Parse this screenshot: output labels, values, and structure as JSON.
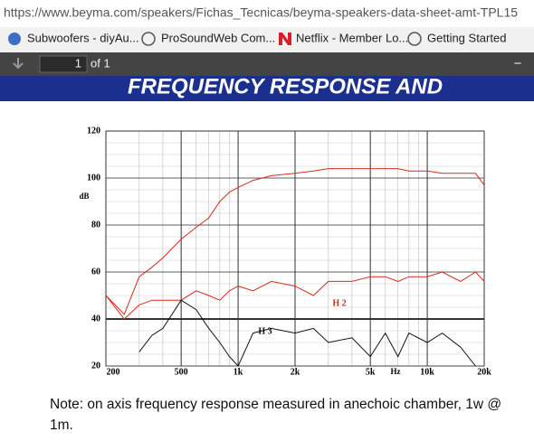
{
  "browser": {
    "url": "https://www.beyma.com/speakers/Fichas_Tecnicas/beyma-speakers-data-sheet-amt-TPL15",
    "bookmarks": [
      "Subwoofers - diyAu...",
      "ProSoundWeb Com...",
      "Netflix - Member Lo...",
      "Getting Started"
    ]
  },
  "pdf_toolbar": {
    "page": "1",
    "of": "of 1",
    "zoom_out": "−"
  },
  "document": {
    "banner": "FREQUENCY RESPONSE AND",
    "note": "Note: on axis frequency response measured  in anechoic chamber,  1w @ 1m."
  },
  "chart_data": {
    "type": "line",
    "x_label": "Hz",
    "y_label": "dB",
    "log_x": true,
    "grid": true,
    "x": [
      200,
      250,
      300,
      350,
      400,
      500,
      600,
      700,
      800,
      900,
      1000,
      1200,
      1500,
      2000,
      2500,
      3000,
      4000,
      5000,
      6000,
      7000,
      8000,
      10000,
      12000,
      15000,
      18000,
      20000
    ],
    "xlim": [
      200,
      20000
    ],
    "xticks": [
      200,
      500,
      {
        "value": 1000,
        "label": "1k"
      },
      {
        "value": 2000,
        "label": "2k"
      },
      {
        "value": 5000,
        "label": "5k"
      },
      {
        "value": 10000,
        "label": "10k"
      },
      {
        "value": 20000,
        "label": "20k"
      }
    ],
    "ylim": [
      20,
      120
    ],
    "yticks": [
      20,
      40,
      60,
      80,
      100,
      120
    ],
    "series": [
      {
        "color": "#d42a20",
        "values": [
          50,
          42,
          58,
          62,
          66,
          74,
          79,
          83,
          90,
          94,
          96,
          99,
          101,
          102,
          103,
          104,
          104,
          104,
          104,
          104,
          103,
          103,
          102,
          102,
          102,
          97
        ]
      },
      {
        "name": "H 2",
        "color": "#d42a20",
        "values": [
          50,
          40,
          46,
          48,
          48,
          48,
          52,
          50,
          48,
          52,
          54,
          52,
          56,
          54,
          50,
          56,
          56,
          58,
          58,
          56,
          58,
          58,
          60,
          56,
          60,
          56
        ]
      },
      {
        "name": "H 3",
        "color": "#111111",
        "values": [
          null,
          null,
          26,
          33,
          36,
          48,
          44,
          36,
          30,
          24,
          20,
          34,
          36,
          34,
          36,
          30,
          32,
          24,
          34,
          24,
          34,
          30,
          34,
          28,
          20,
          null
        ]
      }
    ]
  }
}
